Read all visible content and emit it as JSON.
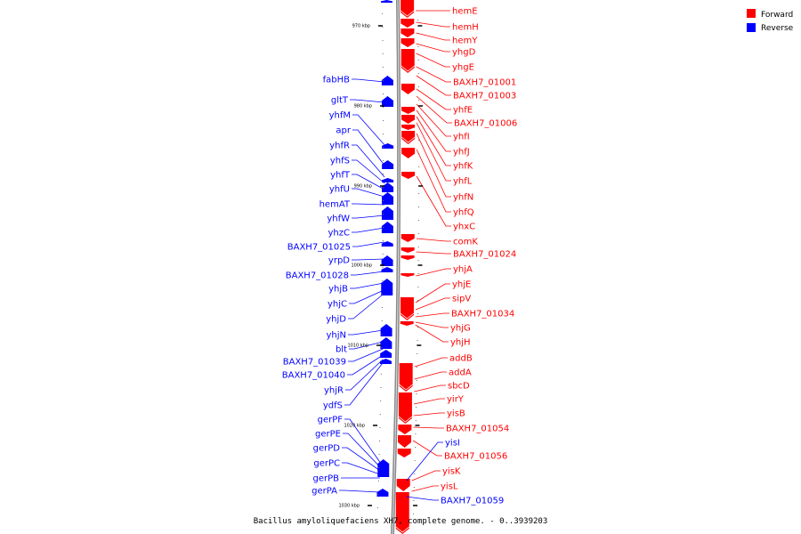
{
  "legend": {
    "forward_label": "Forward",
    "reverse_label": "Reverse",
    "forward_color": "#ff0000",
    "reverse_color": "#0000ff"
  },
  "caption": "Bacillus amyloliquefaciens XH7, complete genome. - 0..3939203",
  "ticks": [
    "970 kbp",
    "980 kbp",
    "990 kbp",
    "1000 kbp",
    "1010 kbp",
    "1020 kbp",
    "1030 kbp"
  ],
  "forward_genes": [
    "hemE",
    "hemH",
    "hemY",
    "yhgD",
    "yhgE",
    "BAXH7_01001",
    "BAXH7_01003",
    "yhfE",
    "BAXH7_01006",
    "yhfI",
    "yhfJ",
    "yhfK",
    "yhfL",
    "yhfN",
    "yhfQ",
    "yhxC",
    "comK",
    "BAXH7_01024",
    "yhjA",
    "yhjE",
    "sipV",
    "BAXH7_01034",
    "yhjG",
    "yhjH",
    "addB",
    "addA",
    "sbcD",
    "yirY",
    "yisB",
    "BAXH7_01054",
    "BAXH7_01056",
    "yisK",
    "yisL"
  ],
  "reverse_genes": [
    "fabHB",
    "gltT",
    "yhfM",
    "apr",
    "yhfR",
    "yhfS",
    "yhfT",
    "yhfU",
    "hemAT",
    "yhfW",
    "yhzC",
    "BAXH7_01025",
    "yrpD",
    "BAXH7_01028",
    "yhjB",
    "yhjC",
    "yhjD",
    "yhjN",
    "blt",
    "BAXH7_01039",
    "BAXH7_01040",
    "yhjR",
    "ydfS",
    "gerPF",
    "gerPE",
    "gerPD",
    "gerPC",
    "gerPB",
    "gerPA"
  ],
  "reverse_genes_right": [
    "yisI",
    "BAXH7_01059"
  ]
}
